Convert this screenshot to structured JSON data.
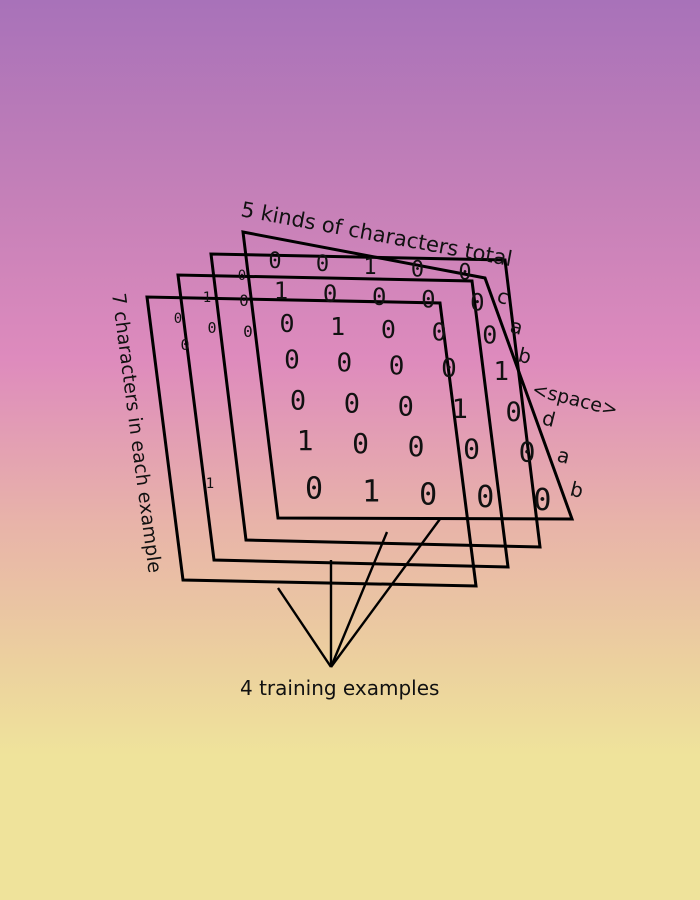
{
  "top_label": "5 kinds of characters total",
  "side_label": "7 characters in each example",
  "bottom_label": "4 training examples",
  "row_labels": [
    "c",
    "a",
    "b",
    "<space>",
    "d",
    "a",
    "b"
  ],
  "matrix": [
    [
      "0",
      "0",
      "1",
      "0",
      "0"
    ],
    [
      "1",
      "0",
      "0",
      "0",
      "0"
    ],
    [
      "0",
      "1",
      "0",
      "0",
      "0"
    ],
    [
      "0",
      "0",
      "0",
      "0",
      "1"
    ],
    [
      "0",
      "0",
      "0",
      "1",
      "0"
    ],
    [
      "1",
      "0",
      "0",
      "0",
      "0"
    ],
    [
      "0",
      "1",
      "0",
      "0",
      "0"
    ]
  ],
  "back_sheet_fragments": [
    "0",
    "1",
    "0",
    "0",
    "0",
    "0",
    "0",
    "1"
  ]
}
